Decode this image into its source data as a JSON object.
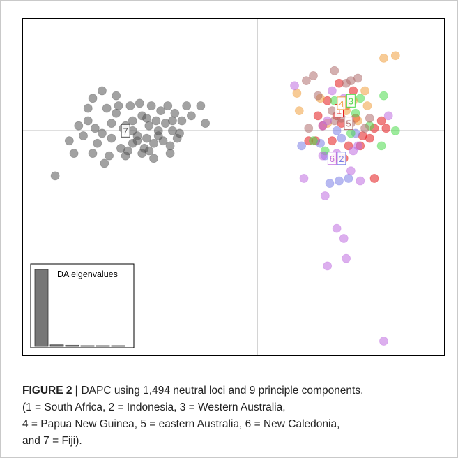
{
  "caption": {
    "label": "FIGURE 2 |",
    "text_lines": [
      " DAPC using 1,494 neutral loci and 9 principle components.",
      "(1 = South Africa, 2 = Indonesia, 3 = Western Australia,",
      "4 = Papua New Guinea, 5 = eastern Australia, 6 = New Caledonia,",
      "and 7 = Fiji)."
    ]
  },
  "chart_data": {
    "type": "scatter",
    "title": "",
    "xlabel": "",
    "ylabel": "",
    "xlim": [
      -10,
      8
    ],
    "ylim": [
      -9,
      4.5
    ],
    "axes_lines": "cross at 0,0",
    "inset": {
      "title": "DA eigenvalues",
      "type": "bar",
      "values": [
        100,
        2,
        1.5,
        0.8,
        0.5,
        0.3
      ],
      "colors": [
        "#777777",
        "#777777",
        "#ffffff",
        "#ffffff",
        "#ffffff",
        "#ffffff"
      ]
    },
    "series": [
      {
        "group": "7",
        "color": "#555555",
        "centroid": [
          -5.6,
          0
        ],
        "points": [
          [
            -8.6,
            -1.8
          ],
          [
            -8.0,
            -0.4
          ],
          [
            -7.6,
            0.2
          ],
          [
            -7.4,
            -0.2
          ],
          [
            -7.2,
            0.4
          ],
          [
            -7.0,
            -0.9
          ],
          [
            -6.8,
            -0.5
          ],
          [
            -6.6,
            -0.1
          ],
          [
            -6.4,
            0.9
          ],
          [
            -6.3,
            -1.0
          ],
          [
            -6.2,
            0.3
          ],
          [
            -6.2,
            -0.3
          ],
          [
            -6.0,
            1.4
          ],
          [
            -6.0,
            0.7
          ],
          [
            -5.8,
            -0.7
          ],
          [
            -5.7,
            0.1
          ],
          [
            -5.6,
            -1.0
          ],
          [
            -5.4,
            1.0
          ],
          [
            -5.3,
            0.4
          ],
          [
            -5.3,
            -0.5
          ],
          [
            -5.1,
            -0.2
          ],
          [
            -5.0,
            1.1
          ],
          [
            -4.9,
            0.6
          ],
          [
            -4.8,
            -0.7
          ],
          [
            -4.7,
            -0.3
          ],
          [
            -4.6,
            0.2
          ],
          [
            -4.5,
            1.0
          ],
          [
            -4.4,
            -0.5
          ],
          [
            -4.3,
            0.4
          ],
          [
            -4.2,
            -0.2
          ],
          [
            -4.1,
            0.8
          ],
          [
            -4.0,
            -0.4
          ],
          [
            -3.9,
            0.3
          ],
          [
            -3.8,
            1.0
          ],
          [
            -3.7,
            -0.6
          ],
          [
            -3.6,
            0.0
          ],
          [
            -3.5,
            0.7
          ],
          [
            -3.4,
            -0.3
          ],
          [
            -3.2,
            0.4
          ],
          [
            -3.0,
            1.0
          ],
          [
            -7.8,
            -0.9
          ],
          [
            -7.2,
            0.9
          ],
          [
            -6.5,
            -1.3
          ],
          [
            -5.5,
            -0.8
          ],
          [
            -4.9,
            -0.9
          ],
          [
            -4.4,
            -1.1
          ],
          [
            -7.0,
            1.3
          ],
          [
            -5.9,
            1.0
          ],
          [
            -3.7,
            -0.9
          ],
          [
            -2.8,
            0.6
          ],
          [
            -2.4,
            1.0
          ],
          [
            -6.6,
            1.6
          ],
          [
            -5.1,
            -0.4
          ],
          [
            -4.7,
            0.5
          ],
          [
            -5.6,
            0.2
          ],
          [
            -4.2,
            0.0
          ],
          [
            -3.3,
            -0.1
          ],
          [
            -6.9,
            0.1
          ],
          [
            -2.2,
            0.3
          ],
          [
            -3.6,
            0.4
          ],
          [
            -4.6,
            -0.8
          ],
          [
            -5.3,
            0.0
          ]
        ]
      },
      {
        "group": "1",
        "color": "#e41a1c",
        "centroid": [
          3.5,
          0.8
        ],
        "points": [
          [
            3.0,
            1.2
          ],
          [
            3.4,
            0.6
          ],
          [
            3.8,
            1.0
          ],
          [
            3.6,
            0.3
          ],
          [
            4.2,
            0.5
          ],
          [
            2.8,
            0.2
          ],
          [
            4.5,
            -0.2
          ],
          [
            3.2,
            -0.4
          ],
          [
            5.0,
            0.1
          ],
          [
            4.8,
            -0.3
          ],
          [
            3.9,
            -0.6
          ],
          [
            3.5,
            1.9
          ],
          [
            4.1,
            1.6
          ],
          [
            2.6,
            0.6
          ],
          [
            5.5,
            0.1
          ],
          [
            3.3,
            -1.1
          ],
          [
            5.3,
            0.4
          ],
          [
            2.2,
            -0.4
          ],
          [
            2.5,
            -0.4
          ],
          [
            3.7,
            -1.1
          ],
          [
            4.4,
            -0.6
          ],
          [
            5.0,
            -1.9
          ]
        ]
      },
      {
        "group": "2",
        "color": "#7b7fe6",
        "centroid": [
          3.6,
          -1.1
        ],
        "points": [
          [
            1.9,
            -0.6
          ],
          [
            2.7,
            -0.5
          ],
          [
            3.6,
            -0.3
          ],
          [
            4.2,
            -0.1
          ],
          [
            3.1,
            -2.1
          ],
          [
            3.5,
            -2.0
          ],
          [
            3.9,
            -1.9
          ],
          [
            2.9,
            -1.0
          ],
          [
            3.4,
            0.0
          ]
        ]
      },
      {
        "group": "3",
        "color": "#4ddb4d",
        "centroid": [
          4.0,
          1.2
        ],
        "points": [
          [
            3.3,
            1.2
          ],
          [
            3.9,
            1.3
          ],
          [
            4.4,
            1.3
          ],
          [
            5.4,
            1.4
          ],
          [
            4.0,
            -0.1
          ],
          [
            2.4,
            -0.4
          ],
          [
            4.8,
            0.2
          ],
          [
            5.3,
            -0.6
          ],
          [
            5.9,
            0.0
          ],
          [
            4.2,
            0.7
          ],
          [
            2.9,
            -0.8
          ]
        ]
      },
      {
        "group": "4",
        "color": "#f0a040",
        "centroid": [
          3.6,
          1.1
        ],
        "points": [
          [
            5.4,
            2.9
          ],
          [
            5.9,
            3.0
          ],
          [
            1.7,
            1.5
          ],
          [
            1.8,
            0.8
          ],
          [
            4.6,
            1.6
          ],
          [
            2.7,
            1.3
          ],
          [
            3.8,
            0.8
          ],
          [
            4.3,
            0.4
          ],
          [
            4.7,
            1.0
          ],
          [
            3.0,
            0.3
          ],
          [
            4.1,
            1.2
          ]
        ]
      },
      {
        "group": "5",
        "color": "#b07070",
        "centroid": [
          3.9,
          0.3
        ],
        "points": [
          [
            2.1,
            2.0
          ],
          [
            2.4,
            2.2
          ],
          [
            3.3,
            2.4
          ],
          [
            3.8,
            1.9
          ],
          [
            4.3,
            2.1
          ],
          [
            4.0,
            2.0
          ],
          [
            2.6,
            1.4
          ],
          [
            3.2,
            0.8
          ],
          [
            4.8,
            0.5
          ],
          [
            2.2,
            0.1
          ],
          [
            3.3,
            0.4
          ],
          [
            4.6,
            0.1
          ],
          [
            3.6,
            0.5
          ],
          [
            4.0,
            0.3
          ]
        ]
      },
      {
        "group": "6",
        "color": "#c06ee0",
        "centroid": [
          3.2,
          -1.1
        ],
        "points": [
          [
            1.6,
            1.8
          ],
          [
            3.2,
            1.6
          ],
          [
            3.7,
            1.3
          ],
          [
            3.0,
            0.4
          ],
          [
            2.8,
            0.2
          ],
          [
            3.4,
            -0.9
          ],
          [
            4.1,
            -0.8
          ],
          [
            4.0,
            -1.6
          ],
          [
            2.8,
            -1.0
          ],
          [
            2.0,
            -1.9
          ],
          [
            2.9,
            -2.6
          ],
          [
            3.4,
            -3.9
          ],
          [
            3.7,
            -4.3
          ],
          [
            3.0,
            -5.4
          ],
          [
            3.8,
            -5.1
          ],
          [
            5.4,
            -8.4
          ],
          [
            5.6,
            0.6
          ],
          [
            4.4,
            -2.0
          ],
          [
            4.3,
            -0.6
          ]
        ]
      }
    ]
  }
}
